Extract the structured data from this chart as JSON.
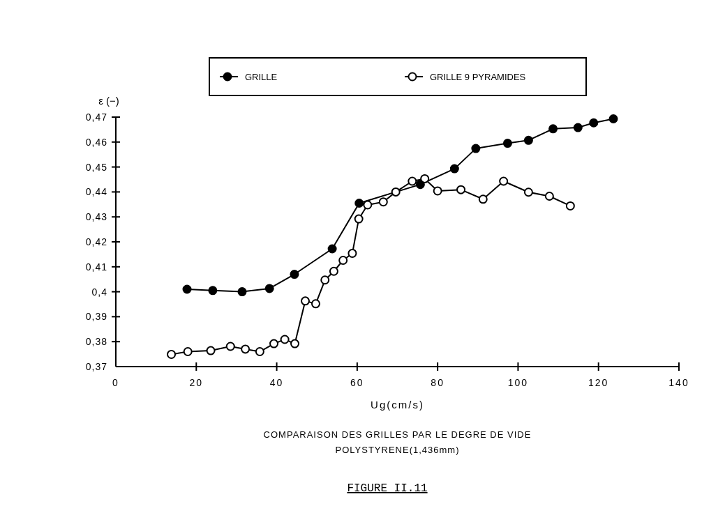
{
  "chart_data": {
    "type": "line",
    "title": "COMPARAISON DES GRILLES PAR LE DEGRE DE VIDE",
    "subtitle": "POLYSTYRENE(1,436mm)",
    "xlabel": "Ug(cm/s)",
    "ylabel": "ε (−)",
    "annotations": [
      "FIGURE II.11"
    ],
    "legend": "top",
    "marker": "circle",
    "line_style": "solid",
    "grid": false,
    "xlim": [
      0,
      140
    ],
    "xticks": [
      0,
      20,
      40,
      60,
      80,
      100,
      120,
      140
    ],
    "ylim": [
      0.37,
      0.47
    ],
    "yticks": [
      {
        "value": 0.37,
        "label": "0,37"
      },
      {
        "value": 0.38,
        "label": "0,38"
      },
      {
        "value": 0.39,
        "label": "0,39"
      },
      {
        "value": 0.4,
        "label": "0,4"
      },
      {
        "value": 0.41,
        "label": "0,41"
      },
      {
        "value": 0.42,
        "label": "0,42"
      },
      {
        "value": 0.43,
        "label": "0,43"
      },
      {
        "value": 0.44,
        "label": "0,44"
      },
      {
        "value": 0.45,
        "label": "0,45"
      },
      {
        "value": 0.46,
        "label": "0,46"
      },
      {
        "value": 0.47,
        "label": "0,47"
      }
    ],
    "series": [
      {
        "name": "GRILLE",
        "color": "#000000",
        "x": [
          17.7,
          24.1,
          31.4,
          38.2,
          44.4,
          53.8,
          60.5,
          75.7,
          84.2,
          89.5,
          97.4,
          102.6,
          108.7,
          114.9,
          118.8,
          123.7
        ],
        "values": [
          0.401,
          0.4005,
          0.4,
          0.4013,
          0.407,
          0.4172,
          0.4355,
          0.443,
          0.4493,
          0.4574,
          0.4595,
          0.4607,
          0.4653,
          0.4658,
          0.4677,
          0.4693
        ]
      },
      {
        "name": "GRILLE 9 PYRAMIDES",
        "color": "#000000",
        "x": [
          13.8,
          17.9,
          23.6,
          28.5,
          32.2,
          35.8,
          39.3,
          42.0,
          44.5,
          47.1,
          49.7,
          52.0,
          54.2,
          56.5,
          58.8,
          60.4,
          62.6,
          66.5,
          69.6,
          73.7,
          76.8,
          80.0,
          85.8,
          91.3,
          96.4,
          102.6,
          107.8,
          113.0
        ],
        "values": [
          0.3749,
          0.376,
          0.3764,
          0.3781,
          0.377,
          0.376,
          0.3792,
          0.3809,
          0.3792,
          0.3963,
          0.3952,
          0.4047,
          0.4082,
          0.4126,
          0.4154,
          0.4292,
          0.4348,
          0.436,
          0.44,
          0.4443,
          0.4453,
          0.4404,
          0.4409,
          0.4371,
          0.4443,
          0.4399,
          0.4383,
          0.4344
        ]
      }
    ]
  }
}
